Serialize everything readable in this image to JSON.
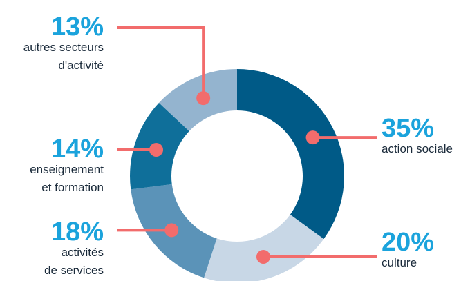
{
  "chart_data": {
    "type": "donut",
    "categories": [
      [
        "action sociale"
      ],
      [
        "culture"
      ],
      [
        "activités",
        "de services"
      ],
      [
        "enseignement",
        "et formation"
      ],
      [
        "autres secteurs",
        "d'activité"
      ]
    ],
    "values": [
      35,
      20,
      18,
      14,
      13
    ],
    "value_labels": [
      "35%",
      "20%",
      "18%",
      "14%",
      "13%"
    ],
    "colors": [
      "#005a87",
      "#c8d7e6",
      "#5b93b8",
      "#0f6f9a",
      "#94b4cf"
    ],
    "callout_color": "#f26c6c",
    "label_color": "#1ba3dc"
  }
}
